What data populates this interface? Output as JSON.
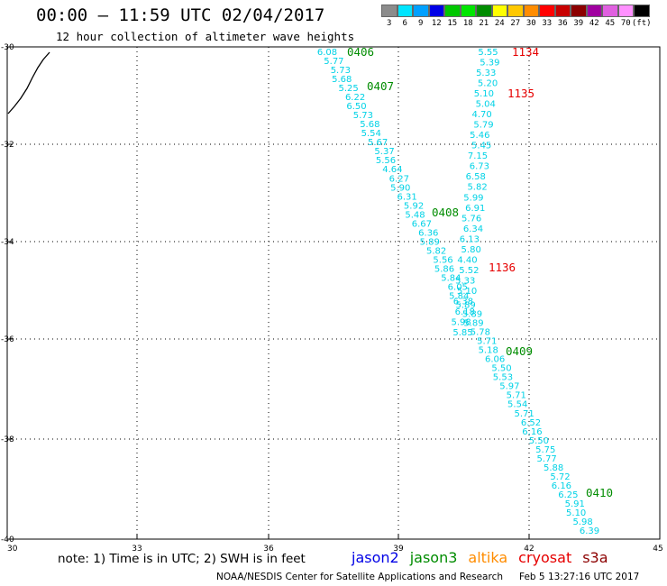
{
  "header": {
    "title": "00:00 – 11:59 UTC 02/04/2017",
    "subtitle": "12 hour collection of altimeter wave heights"
  },
  "colorbar": {
    "colors": [
      "#8c8c8c",
      "#00e5ff",
      "#00a0ff",
      "#0000e6",
      "#00c800",
      "#00e600",
      "#008c00",
      "#ffff00",
      "#ffc800",
      "#ff8c00",
      "#ff0000",
      "#c80000",
      "#8c0000",
      "#a000a0",
      "#e060e0",
      "#ff90ff",
      "#000000"
    ],
    "labels": [
      "3",
      "6",
      "9",
      "12",
      "15",
      "18",
      "21",
      "24",
      "27",
      "30",
      "33",
      "36",
      "39",
      "42",
      "45",
      "70",
      "(ft)"
    ]
  },
  "map": {
    "lat_ticks": [
      "-30",
      "-32",
      "-34",
      "-36",
      "-38",
      "-40"
    ],
    "lon_ticks": [
      "30",
      "33",
      "36",
      "39",
      "42",
      "45"
    ],
    "coastline_color": "#000000",
    "track_color": "#00d2e6"
  },
  "passes": [
    {
      "time": "0406",
      "color": "#008c00"
    },
    {
      "time": "0407",
      "color": "#008c00"
    },
    {
      "time": "0408",
      "color": "#008c00"
    },
    {
      "time": "0409",
      "color": "#008c00"
    },
    {
      "time": "0410",
      "color": "#008c00"
    },
    {
      "time": "1134",
      "color": "#e60000"
    },
    {
      "time": "1135",
      "color": "#e60000"
    },
    {
      "time": "1136",
      "color": "#e60000"
    }
  ],
  "track_descending": [
    "6.08",
    "5.77",
    "5.73",
    "5.68",
    "5.25",
    "6.22",
    "6.50",
    "5.73",
    "5.68",
    "5.54",
    "5.67",
    "5.37",
    "5.56",
    "4.64",
    "6.27",
    "5.90",
    "6.31",
    "5.92",
    "5.48",
    "6.67",
    "6.36",
    "5.89",
    "5.82",
    "5.56",
    "5.86",
    "5.84",
    "6.05",
    "5.84",
    "5.89",
    "5.89",
    "5.89",
    "5.78",
    "5.71",
    "5.18",
    "6.06",
    "5.50",
    "5.53",
    "5.97",
    "5.71",
    "5.54",
    "5.71",
    "6.52",
    "6.16",
    "5.50",
    "5.75",
    "5.77",
    "5.88",
    "5.72",
    "6.16",
    "6.25",
    "5.91",
    "5.10",
    "5.98",
    "6.39"
  ],
  "track_ascending": [
    "5.55",
    "5.39",
    "5.33",
    "5.20",
    "5.10",
    "5.04",
    "4.70",
    "5.79",
    "5.46",
    "5.45",
    "7.15",
    "6.73",
    "6.58",
    "5.82",
    "5.99",
    "6.91",
    "5.76",
    "6.34",
    "6.13",
    "5.80",
    "4.40",
    "5.52",
    "5.33",
    "5.10",
    "6.38",
    "6.18",
    "5.98",
    "5.85"
  ],
  "footer": {
    "note": "note: 1) Time is in UTC; 2) SWH is in feet",
    "satellites": [
      {
        "name": "jason2",
        "color": "#0000e6"
      },
      {
        "name": "jason3",
        "color": "#008c00"
      },
      {
        "name": "altika",
        "color": "#ff8c00"
      },
      {
        "name": "cryosat",
        "color": "#e60000"
      },
      {
        "name": "s3a",
        "color": "#8c0000"
      }
    ],
    "credit": "NOAA/NESDIS Center for Satellite Applications and Research",
    "timestamp": "Feb  5 13:27:16 UTC 2017"
  }
}
